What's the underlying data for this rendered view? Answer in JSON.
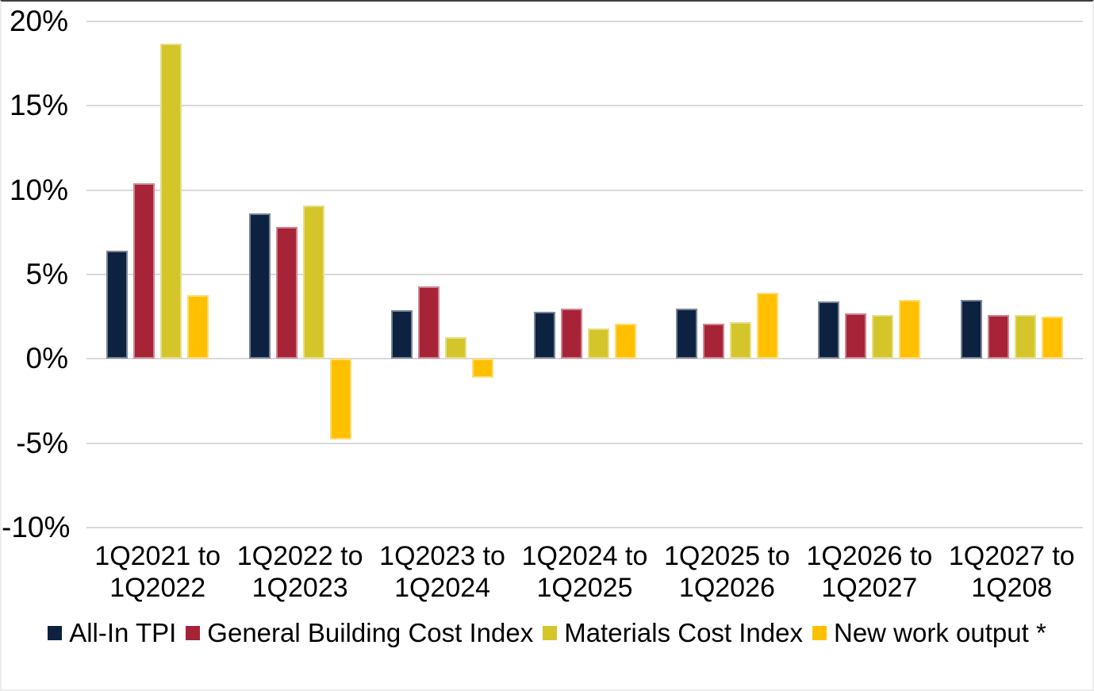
{
  "chart_data": {
    "type": "bar",
    "title": "",
    "xlabel": "",
    "ylabel": "",
    "categories": [
      "1Q2021 to 1Q2022",
      "1Q2022 to 1Q2023",
      "1Q2023 to 1Q2024",
      "1Q2024 to 1Q2025",
      "1Q2025 to 1Q2026",
      "1Q2026 to 1Q2027",
      "1Q2027 to 1Q208"
    ],
    "series": [
      {
        "name": "All-In TPI",
        "color": "#0d2240",
        "values": [
          6.4,
          8.6,
          2.9,
          2.8,
          3.0,
          3.4,
          3.5
        ]
      },
      {
        "name": "General Building Cost Index",
        "color": "#a62338",
        "values": [
          10.4,
          7.8,
          4.3,
          3.0,
          2.1,
          2.7,
          2.6
        ]
      },
      {
        "name": "Materials Cost Index",
        "color": "#d3c52a",
        "values": [
          18.7,
          9.1,
          1.3,
          1.8,
          2.2,
          2.6,
          2.6
        ]
      },
      {
        "name": "New work output *",
        "color": "#ffc000",
        "values": [
          3.8,
          -4.8,
          -1.1,
          2.1,
          3.9,
          3.5,
          2.5
        ]
      }
    ],
    "ylim": [
      -10,
      20
    ],
    "ytick_step": 5,
    "ytick_labels": [
      "20%",
      "15%",
      "10%",
      "5%",
      "0%",
      "-5%",
      "-10%"
    ],
    "grid": true,
    "legend_position": "bottom"
  },
  "colors": {
    "background": "#ffffff",
    "gridline": "#d9d9d9",
    "text": "#000000"
  }
}
